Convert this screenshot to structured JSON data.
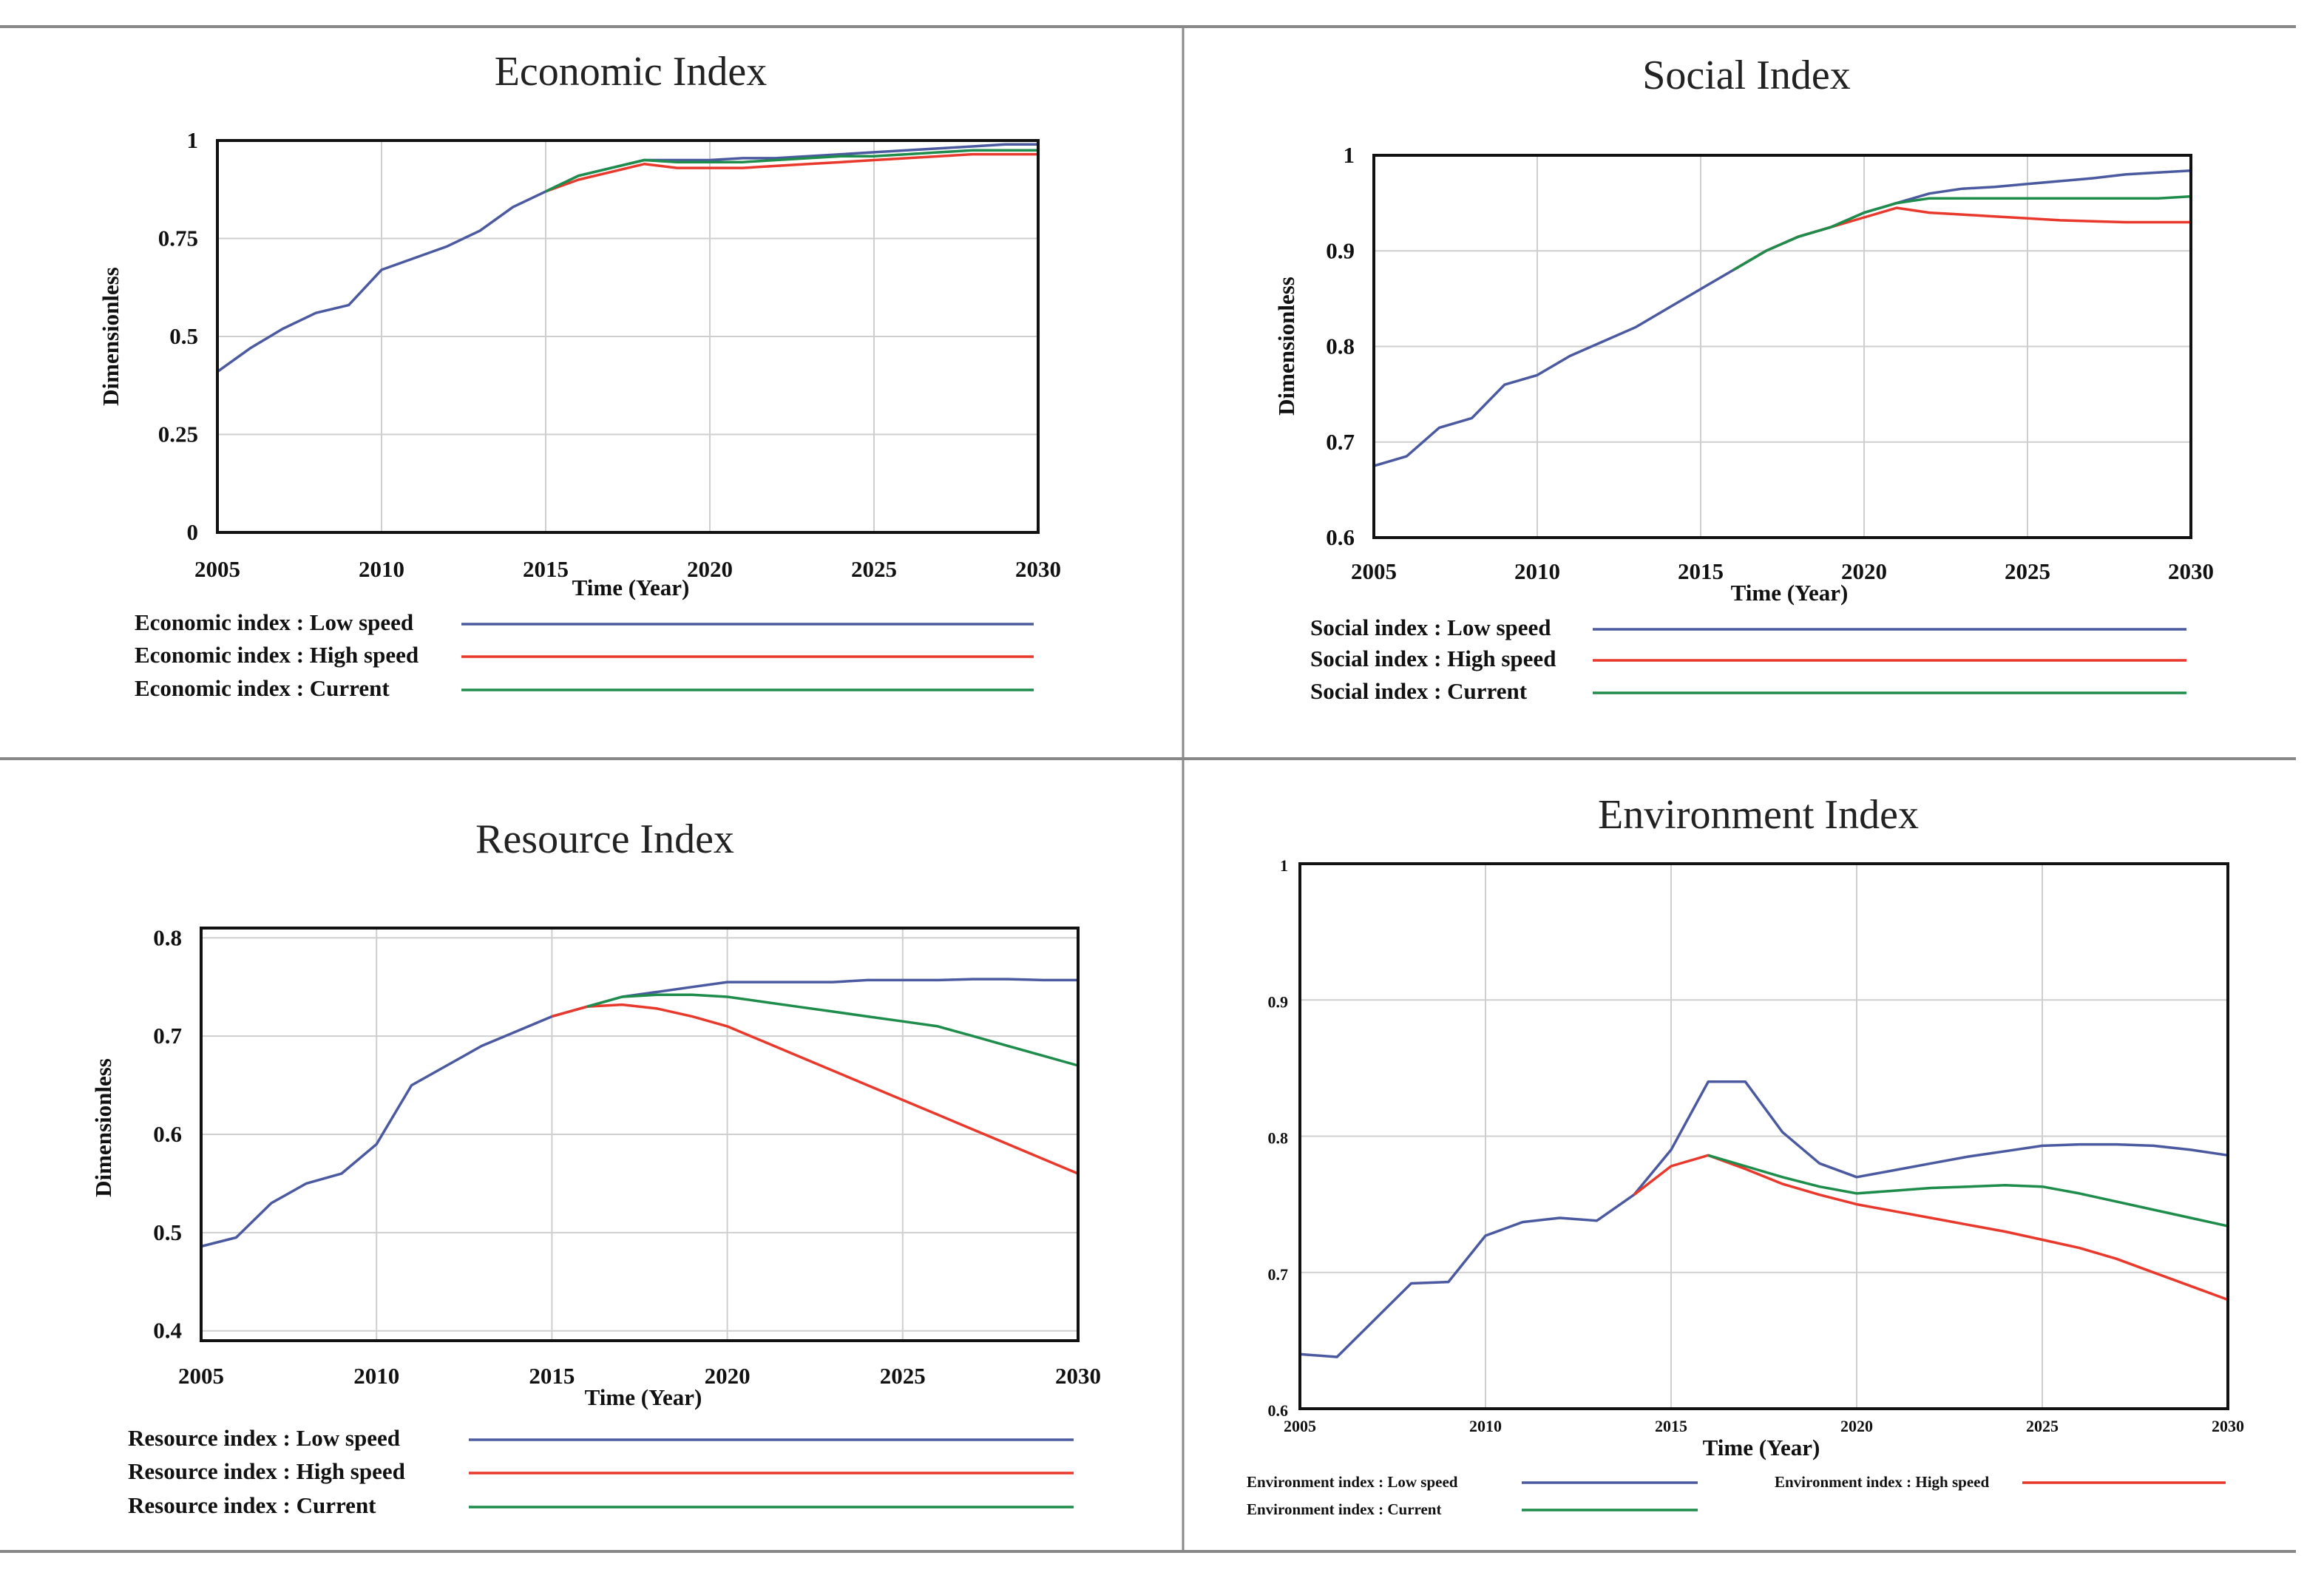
{
  "chart_data": [
    {
      "type": "line",
      "title": "Economic Index",
      "xlabel": "Time (Year)",
      "ylabel": "Dimensionless",
      "xlim": [
        2005,
        2030
      ],
      "ylim": [
        0,
        1
      ],
      "xticks": [
        "2005",
        "2010",
        "2015",
        "2020",
        "2025",
        "2030"
      ],
      "yticks": [
        "0",
        "0.25",
        "0.5",
        "0.75",
        "1"
      ],
      "grid": true,
      "legend_layout": "stacked",
      "series": [
        {
          "name": "Low speed",
          "legend": "Economic index : Low speed",
          "color": "#4b5aa0",
          "x": [
            2005,
            2006,
            2007,
            2008,
            2009,
            2010,
            2011,
            2012,
            2013,
            2014,
            2015,
            2016,
            2017,
            2018,
            2019,
            2020,
            2021,
            2022,
            2023,
            2024,
            2025,
            2026,
            2027,
            2028,
            2029,
            2030
          ],
          "y": [
            0.41,
            0.47,
            0.52,
            0.56,
            0.58,
            0.67,
            0.7,
            0.73,
            0.77,
            0.83,
            0.87,
            0.91,
            0.93,
            0.95,
            0.95,
            0.95,
            0.955,
            0.955,
            0.96,
            0.965,
            0.97,
            0.975,
            0.98,
            0.985,
            0.99,
            0.99
          ]
        },
        {
          "name": "High speed",
          "legend": "Economic index : High speed",
          "color": "#e8392c",
          "x": [
            2015,
            2016,
            2017,
            2018,
            2019,
            2020,
            2021,
            2022,
            2023,
            2024,
            2025,
            2026,
            2027,
            2028,
            2029,
            2030
          ],
          "y": [
            0.87,
            0.9,
            0.92,
            0.94,
            0.93,
            0.93,
            0.93,
            0.935,
            0.94,
            0.945,
            0.95,
            0.955,
            0.96,
            0.965,
            0.965,
            0.965
          ]
        },
        {
          "name": "Current",
          "legend": "Economic index : Current",
          "color": "#1e8c4a",
          "x": [
            2015,
            2016,
            2017,
            2018,
            2019,
            2020,
            2021,
            2022,
            2023,
            2024,
            2025,
            2026,
            2027,
            2028,
            2029,
            2030
          ],
          "y": [
            0.87,
            0.91,
            0.93,
            0.95,
            0.945,
            0.945,
            0.945,
            0.95,
            0.955,
            0.96,
            0.96,
            0.965,
            0.97,
            0.975,
            0.975,
            0.975
          ]
        }
      ]
    },
    {
      "type": "line",
      "title": "Social Index",
      "xlabel": "Time (Year)",
      "ylabel": "Dimensionless",
      "xlim": [
        2005,
        2030
      ],
      "ylim": [
        0.6,
        1.0
      ],
      "xticks": [
        "2005",
        "2010",
        "2015",
        "2020",
        "2025",
        "2030"
      ],
      "yticks": [
        "0.6",
        "0.7",
        "0.8",
        "0.9",
        "1"
      ],
      "grid": true,
      "legend_layout": "stacked",
      "series": [
        {
          "name": "Low speed",
          "legend": "Social index : Low speed",
          "color": "#4b5aa0",
          "x": [
            2005,
            2006,
            2007,
            2008,
            2009,
            2010,
            2011,
            2012,
            2013,
            2014,
            2015,
            2016,
            2017,
            2018,
            2019,
            2020,
            2021,
            2022,
            2023,
            2024,
            2025,
            2026,
            2027,
            2028,
            2029,
            2030
          ],
          "y": [
            0.675,
            0.685,
            0.715,
            0.725,
            0.76,
            0.77,
            0.79,
            0.805,
            0.82,
            0.84,
            0.86,
            0.88,
            0.9,
            0.915,
            0.925,
            0.94,
            0.95,
            0.96,
            0.965,
            0.967,
            0.97,
            0.973,
            0.976,
            0.98,
            0.982,
            0.984
          ]
        },
        {
          "name": "High speed",
          "legend": "Social index : High speed",
          "color": "#e8392c",
          "x": [
            2016,
            2017,
            2018,
            2019,
            2020,
            2021,
            2022,
            2023,
            2024,
            2025,
            2026,
            2027,
            2028,
            2029,
            2030
          ],
          "y": [
            0.88,
            0.9,
            0.915,
            0.925,
            0.935,
            0.945,
            0.94,
            0.938,
            0.936,
            0.934,
            0.932,
            0.931,
            0.93,
            0.93,
            0.93
          ]
        },
        {
          "name": "Current",
          "legend": "Social index : Current",
          "color": "#1e8c4a",
          "x": [
            2016,
            2017,
            2018,
            2019,
            2020,
            2021,
            2022,
            2023,
            2024,
            2025,
            2026,
            2027,
            2028,
            2029,
            2030
          ],
          "y": [
            0.88,
            0.9,
            0.915,
            0.925,
            0.94,
            0.95,
            0.955,
            0.955,
            0.955,
            0.955,
            0.955,
            0.955,
            0.955,
            0.955,
            0.957
          ]
        }
      ]
    },
    {
      "type": "line",
      "title": "Resource Index",
      "xlabel": "Time (Year)",
      "ylabel": "Dimensionless",
      "xlim": [
        2005,
        2030
      ],
      "ylim": [
        0.39,
        0.81
      ],
      "xticks": [
        "2005",
        "2010",
        "2015",
        "2020",
        "2025",
        "2030"
      ],
      "yticks": [
        "0.4",
        "0.5",
        "0.6",
        "0.7",
        "0.8"
      ],
      "grid": true,
      "legend_layout": "stacked",
      "series": [
        {
          "name": "Low speed",
          "legend": "Resource index : Low speed",
          "color": "#4b5aa0",
          "x": [
            2005,
            2006,
            2007,
            2008,
            2009,
            2010,
            2011,
            2012,
            2013,
            2014,
            2015,
            2016,
            2017,
            2018,
            2019,
            2020,
            2021,
            2022,
            2023,
            2024,
            2025,
            2026,
            2027,
            2028,
            2029,
            2030
          ],
          "y": [
            0.486,
            0.495,
            0.53,
            0.55,
            0.56,
            0.59,
            0.65,
            0.67,
            0.69,
            0.705,
            0.72,
            0.73,
            0.74,
            0.745,
            0.75,
            0.755,
            0.755,
            0.755,
            0.755,
            0.757,
            0.757,
            0.757,
            0.758,
            0.758,
            0.757,
            0.757
          ]
        },
        {
          "name": "High speed",
          "legend": "Resource index : High speed",
          "color": "#e8392c",
          "x": [
            2015,
            2016,
            2017,
            2018,
            2019,
            2020,
            2021,
            2022,
            2023,
            2024,
            2025,
            2026,
            2027,
            2028,
            2029,
            2030
          ],
          "y": [
            0.72,
            0.73,
            0.732,
            0.728,
            0.72,
            0.71,
            0.695,
            0.68,
            0.665,
            0.65,
            0.635,
            0.62,
            0.605,
            0.59,
            0.575,
            0.56
          ]
        },
        {
          "name": "Current",
          "legend": "Resource index : Current",
          "color": "#1e8c4a",
          "x": [
            2016,
            2017,
            2018,
            2019,
            2020,
            2021,
            2022,
            2023,
            2024,
            2025,
            2026,
            2027,
            2028,
            2029,
            2030
          ],
          "y": [
            0.73,
            0.74,
            0.742,
            0.742,
            0.74,
            0.735,
            0.73,
            0.725,
            0.72,
            0.715,
            0.71,
            0.7,
            0.69,
            0.68,
            0.67
          ]
        }
      ]
    },
    {
      "type": "line",
      "title": "Environment Index",
      "xlabel": "Time (Year)",
      "ylabel": "",
      "xlim": [
        2005,
        2030
      ],
      "ylim": [
        0.6,
        1.0
      ],
      "xticks": [
        "2005",
        "2010",
        "2015",
        "2020",
        "2025",
        "2030"
      ],
      "yticks": [
        "0.6",
        "0.7",
        "0.8",
        "0.9",
        "1"
      ],
      "grid": true,
      "legend_layout": "two-column",
      "series": [
        {
          "name": "Low speed",
          "legend": "Environment index : Low speed",
          "color": "#4b5aa0",
          "x": [
            2005,
            2006,
            2007,
            2008,
            2009,
            2010,
            2011,
            2012,
            2013,
            2014,
            2015,
            2016,
            2017,
            2018,
            2019,
            2020,
            2021,
            2022,
            2023,
            2024,
            2025,
            2026,
            2027,
            2028,
            2029,
            2030
          ],
          "y": [
            0.64,
            0.638,
            0.665,
            0.692,
            0.693,
            0.727,
            0.737,
            0.74,
            0.738,
            0.757,
            0.79,
            0.84,
            0.84,
            0.803,
            0.78,
            0.77,
            0.775,
            0.78,
            0.785,
            0.789,
            0.793,
            0.794,
            0.794,
            0.793,
            0.79,
            0.786
          ]
        },
        {
          "name": "High speed",
          "legend": "Environment index : High speed",
          "color": "#e8392c",
          "x": [
            2014,
            2015,
            2016,
            2017,
            2018,
            2019,
            2020,
            2021,
            2022,
            2023,
            2024,
            2025,
            2026,
            2027,
            2028,
            2029,
            2030
          ],
          "y": [
            0.757,
            0.778,
            0.786,
            0.776,
            0.765,
            0.757,
            0.75,
            0.745,
            0.74,
            0.735,
            0.73,
            0.724,
            0.718,
            0.71,
            0.7,
            0.69,
            0.68
          ]
        },
        {
          "name": "Current",
          "legend": "Environment index : Current",
          "color": "#1e8c4a",
          "x": [
            2016,
            2017,
            2018,
            2019,
            2020,
            2021,
            2022,
            2023,
            2024,
            2025,
            2026,
            2027,
            2028,
            2029,
            2030
          ],
          "y": [
            0.786,
            0.778,
            0.77,
            0.763,
            0.758,
            0.76,
            0.762,
            0.763,
            0.764,
            0.763,
            0.758,
            0.752,
            0.746,
            0.74,
            0.734
          ]
        }
      ]
    }
  ]
}
